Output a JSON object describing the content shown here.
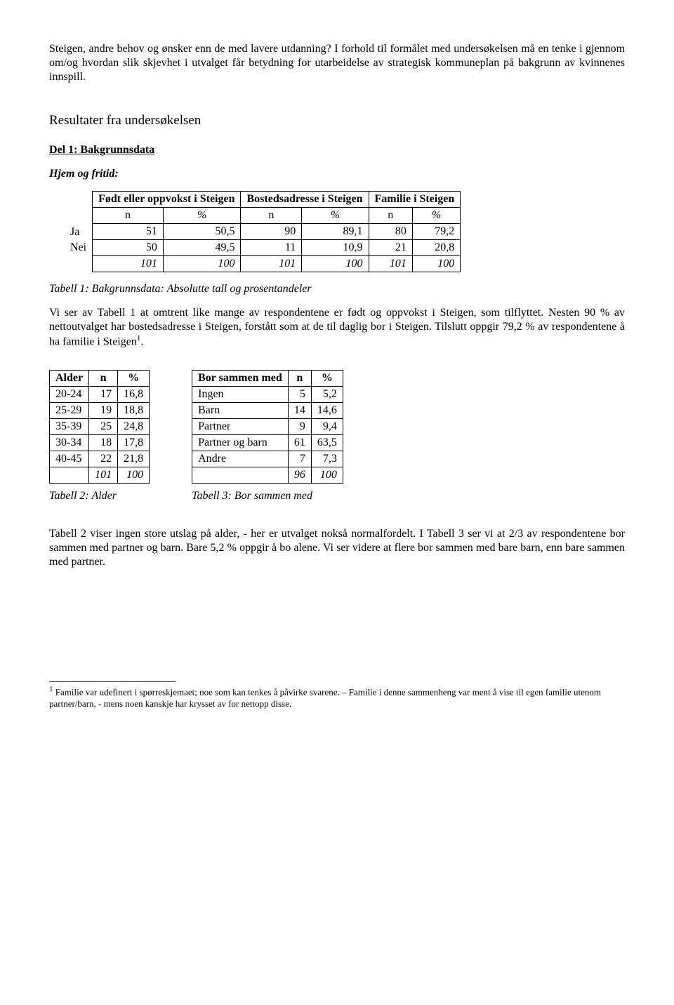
{
  "intro": {
    "p1a": "Steigen, andre behov og ønsker enn de med lavere utdanning?",
    "p1b": "I forhold til formålet med undersøkelsen må en tenke i gjennom om/og hvordan slik skjevhet i utvalget får betydning for utarbeidelse av strategisk kommuneplan på bakgrunn av kvinnenes innspill."
  },
  "section_title": "Resultater fra undersøkelsen",
  "del1_title": "Del 1: Bakgrunnsdata",
  "hjem_title": "Hjem og fritid:",
  "t1": {
    "row_labels": [
      "Ja",
      "Nei"
    ],
    "headers": [
      "Født eller oppvokst i Steigen",
      "Bostedsadresse i Steigen",
      "Familie i Steigen"
    ],
    "sub_n": "n",
    "sub_pct": "%",
    "rows": [
      [
        "51",
        "50,5",
        "90",
        "89,1",
        "80",
        "79,2"
      ],
      [
        "50",
        "49,5",
        "11",
        "10,9",
        "21",
        "20,8"
      ]
    ],
    "total": [
      "101",
      "100",
      "101",
      "100",
      "101",
      "100"
    ],
    "caption": "Tabell 1: Bakgrunnsdata: Absolutte tall og prosentandeler"
  },
  "t1_para": "Vi ser av Tabell 1 at omtrent like mange av respondentene er født og oppvokst i Steigen, som tilflyttet. Nesten 90 % av nettoutvalget har bostedsadresse i Steigen, forstått som at de til daglig bor i Steigen. Tilslutt oppgir 79,2 % av respondentene å ha familie i Steigen",
  "t1_para_end": ".",
  "t2": {
    "title": "Alder",
    "h_n": "n",
    "h_pct": "%",
    "rows": [
      [
        "20-24",
        "17",
        "16,8"
      ],
      [
        "25-29",
        "19",
        "18,8"
      ],
      [
        "35-39",
        "25",
        "24,8"
      ],
      [
        "30-34",
        "18",
        "17,8"
      ],
      [
        "40-45",
        "22",
        "21,8"
      ]
    ],
    "total": [
      "",
      "101",
      "100"
    ],
    "caption": "Tabell 2: Alder"
  },
  "t3": {
    "title": "Bor sammen med",
    "h_n": "n",
    "h_pct": "%",
    "rows": [
      [
        "Ingen",
        "5",
        "5,2"
      ],
      [
        "Barn",
        "14",
        "14,6"
      ],
      [
        "Partner",
        "9",
        "9,4"
      ],
      [
        "Partner og barn",
        "61",
        "63,5"
      ],
      [
        "Andre",
        "7",
        "7,3"
      ]
    ],
    "total": [
      "",
      "96",
      "100"
    ],
    "caption": "Tabell 3: Bor sammen med"
  },
  "t23_para": "Tabell 2 viser ingen store utslag på alder, - her er utvalget nokså normalfordelt. I Tabell 3 ser vi at 2/3 av respondentene bor sammen med partner og barn. Bare 5,2 % oppgir å bo alene. Vi ser videre at flere bor sammen med bare barn, enn bare sammen med partner.",
  "footnote_marker": "1",
  "footnote": " Familie var udefinert i spørreskjemaet; noe som kan tenkes å påvirke svarene. – Familie i denne sammenheng var ment å vise til egen familie utenom partner/barn, - mens noen kanskje har krysset av for nettopp disse."
}
